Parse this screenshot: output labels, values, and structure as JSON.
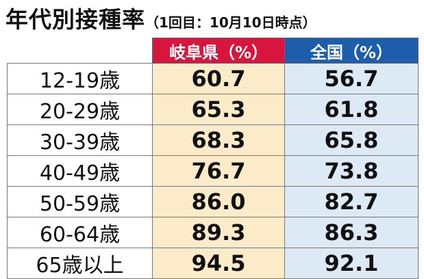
{
  "header": {
    "title": "年代別接種率",
    "subtitle": "（1回目：10月10日時点）"
  },
  "table": {
    "columns": [
      "岐阜県（%）",
      "全国（%）"
    ],
    "rows": [
      [
        "12-19歳",
        "60.7",
        "56.7"
      ],
      [
        "20-29歳",
        "65.3",
        "61.8"
      ],
      [
        "30-39歳",
        "68.3",
        "65.8"
      ],
      [
        "40-49歳",
        "76.7",
        "73.8"
      ],
      [
        "50-59歳",
        "86.0",
        "82.7"
      ],
      [
        "60-64歳",
        "89.3",
        "86.3"
      ],
      [
        "65歳以上",
        "94.5",
        "92.1"
      ]
    ]
  }
}
